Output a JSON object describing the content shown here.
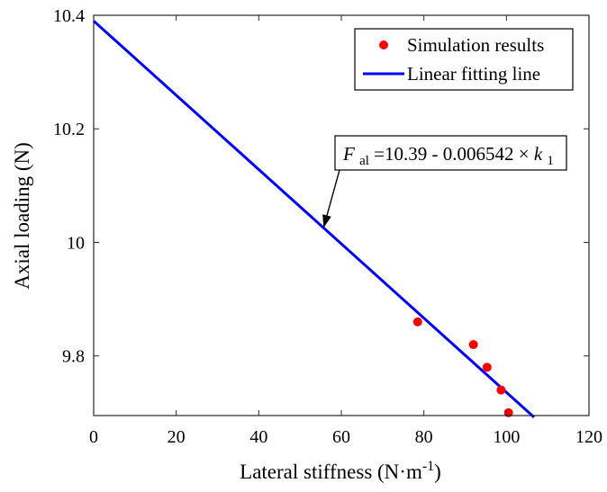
{
  "chart_data": {
    "type": "scatter",
    "xlabel": "Lateral stiffness (N·m",
    "xlabel_sup": "-1",
    "xlabel_close": ")",
    "ylabel": "Axial loading (N)",
    "xlim": [
      0,
      120
    ],
    "ylim": [
      9.695,
      10.4
    ],
    "xticks": [
      0,
      20,
      40,
      60,
      80,
      100,
      120
    ],
    "xtick_labels": [
      "0",
      "20",
      "40",
      "60",
      "80",
      "100",
      "120"
    ],
    "yticks": [
      9.8,
      10.0,
      10.2,
      10.4
    ],
    "ytick_labels": [
      "9.8",
      "10",
      "10.2",
      "10.4"
    ],
    "grid": false,
    "legend_position": "top-right",
    "series": [
      {
        "name": "Simulation results",
        "kind": "scatter",
        "color": "#ff0000",
        "x": [
          78.5,
          92.0,
          95.3,
          98.7,
          100.5
        ],
        "y": [
          9.86,
          9.82,
          9.78,
          9.74,
          9.7
        ]
      },
      {
        "name": "Linear fitting line",
        "kind": "line",
        "color": "#0000ff",
        "intercept": 10.39,
        "slope": -0.006542,
        "x_range": [
          0,
          106.7
        ]
      }
    ],
    "annotation": {
      "F": "F",
      "F_sub": "al",
      "expr": "=10.39 - 0.006542",
      "times": "×",
      "k": "k",
      "k_sub": "1",
      "arrow_target": {
        "x": 55.7,
        "y": 10.026
      }
    }
  }
}
